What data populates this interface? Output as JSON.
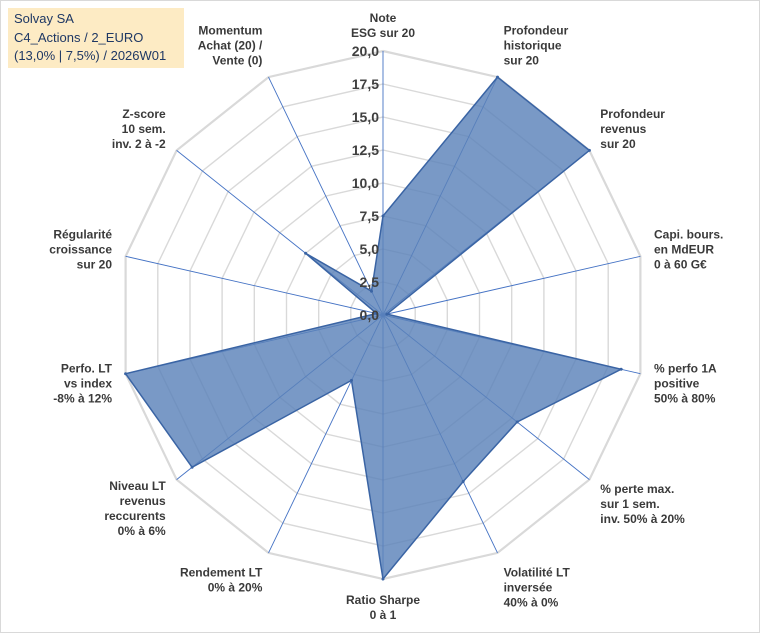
{
  "info": {
    "line1": "Solvay SA",
    "line2": "C4_Actions / 2_EURO",
    "line3": "(13,0% | 7,5%) / 2026W01"
  },
  "colors": {
    "fill": "#5b82b9",
    "stroke": "#3a64a4",
    "grid": "#d9d9d9",
    "spoke": "#4472c4",
    "info_bg": "#fdebc4",
    "info_text": "#1f3864"
  },
  "chart_data": {
    "type": "radar",
    "title": "",
    "rmin": 0,
    "rmax": 20,
    "ticks": [
      "0,0",
      "2,5",
      "5,0",
      "7,5",
      "10,0",
      "12,5",
      "15,0",
      "17,5",
      "20,0"
    ],
    "grid": true,
    "categories": [
      [
        "Note",
        "ESG sur 20"
      ],
      [
        "Profondeur",
        "historique",
        "sur 20"
      ],
      [
        "Profondeur",
        "revenus",
        "sur 20"
      ],
      [
        "Capi. bours.",
        "en MdEUR",
        "0 à 60 G€"
      ],
      [
        "% perfo 1A",
        "positive",
        "50% à 80%"
      ],
      [
        "% perte max.",
        "sur 1 sem.",
        "inv. 50% à 20%"
      ],
      [
        "Volatilité LT",
        "inversée",
        "40% à 0%"
      ],
      [
        "Ratio Sharpe",
        "0 à 1"
      ],
      [
        "Rendement LT",
        "0% à 20%"
      ],
      [
        "Niveau LT",
        "revenus",
        "reccurents",
        "0% à 6%"
      ],
      [
        "Perfo. LT",
        "vs index",
        "-8% à 12%"
      ],
      [
        "Régularité",
        "croissance",
        "sur 20"
      ],
      [
        "Z-score",
        "10 sem.",
        "inv. 2 à -2"
      ],
      [
        "Momentum",
        "Achat (20) /",
        "Vente (0)"
      ]
    ],
    "values": [
      7.5,
      20,
      20,
      0.3,
      18.5,
      13,
      14,
      20,
      5.5,
      18.5,
      20,
      0.5,
      7.5,
      2
    ]
  }
}
